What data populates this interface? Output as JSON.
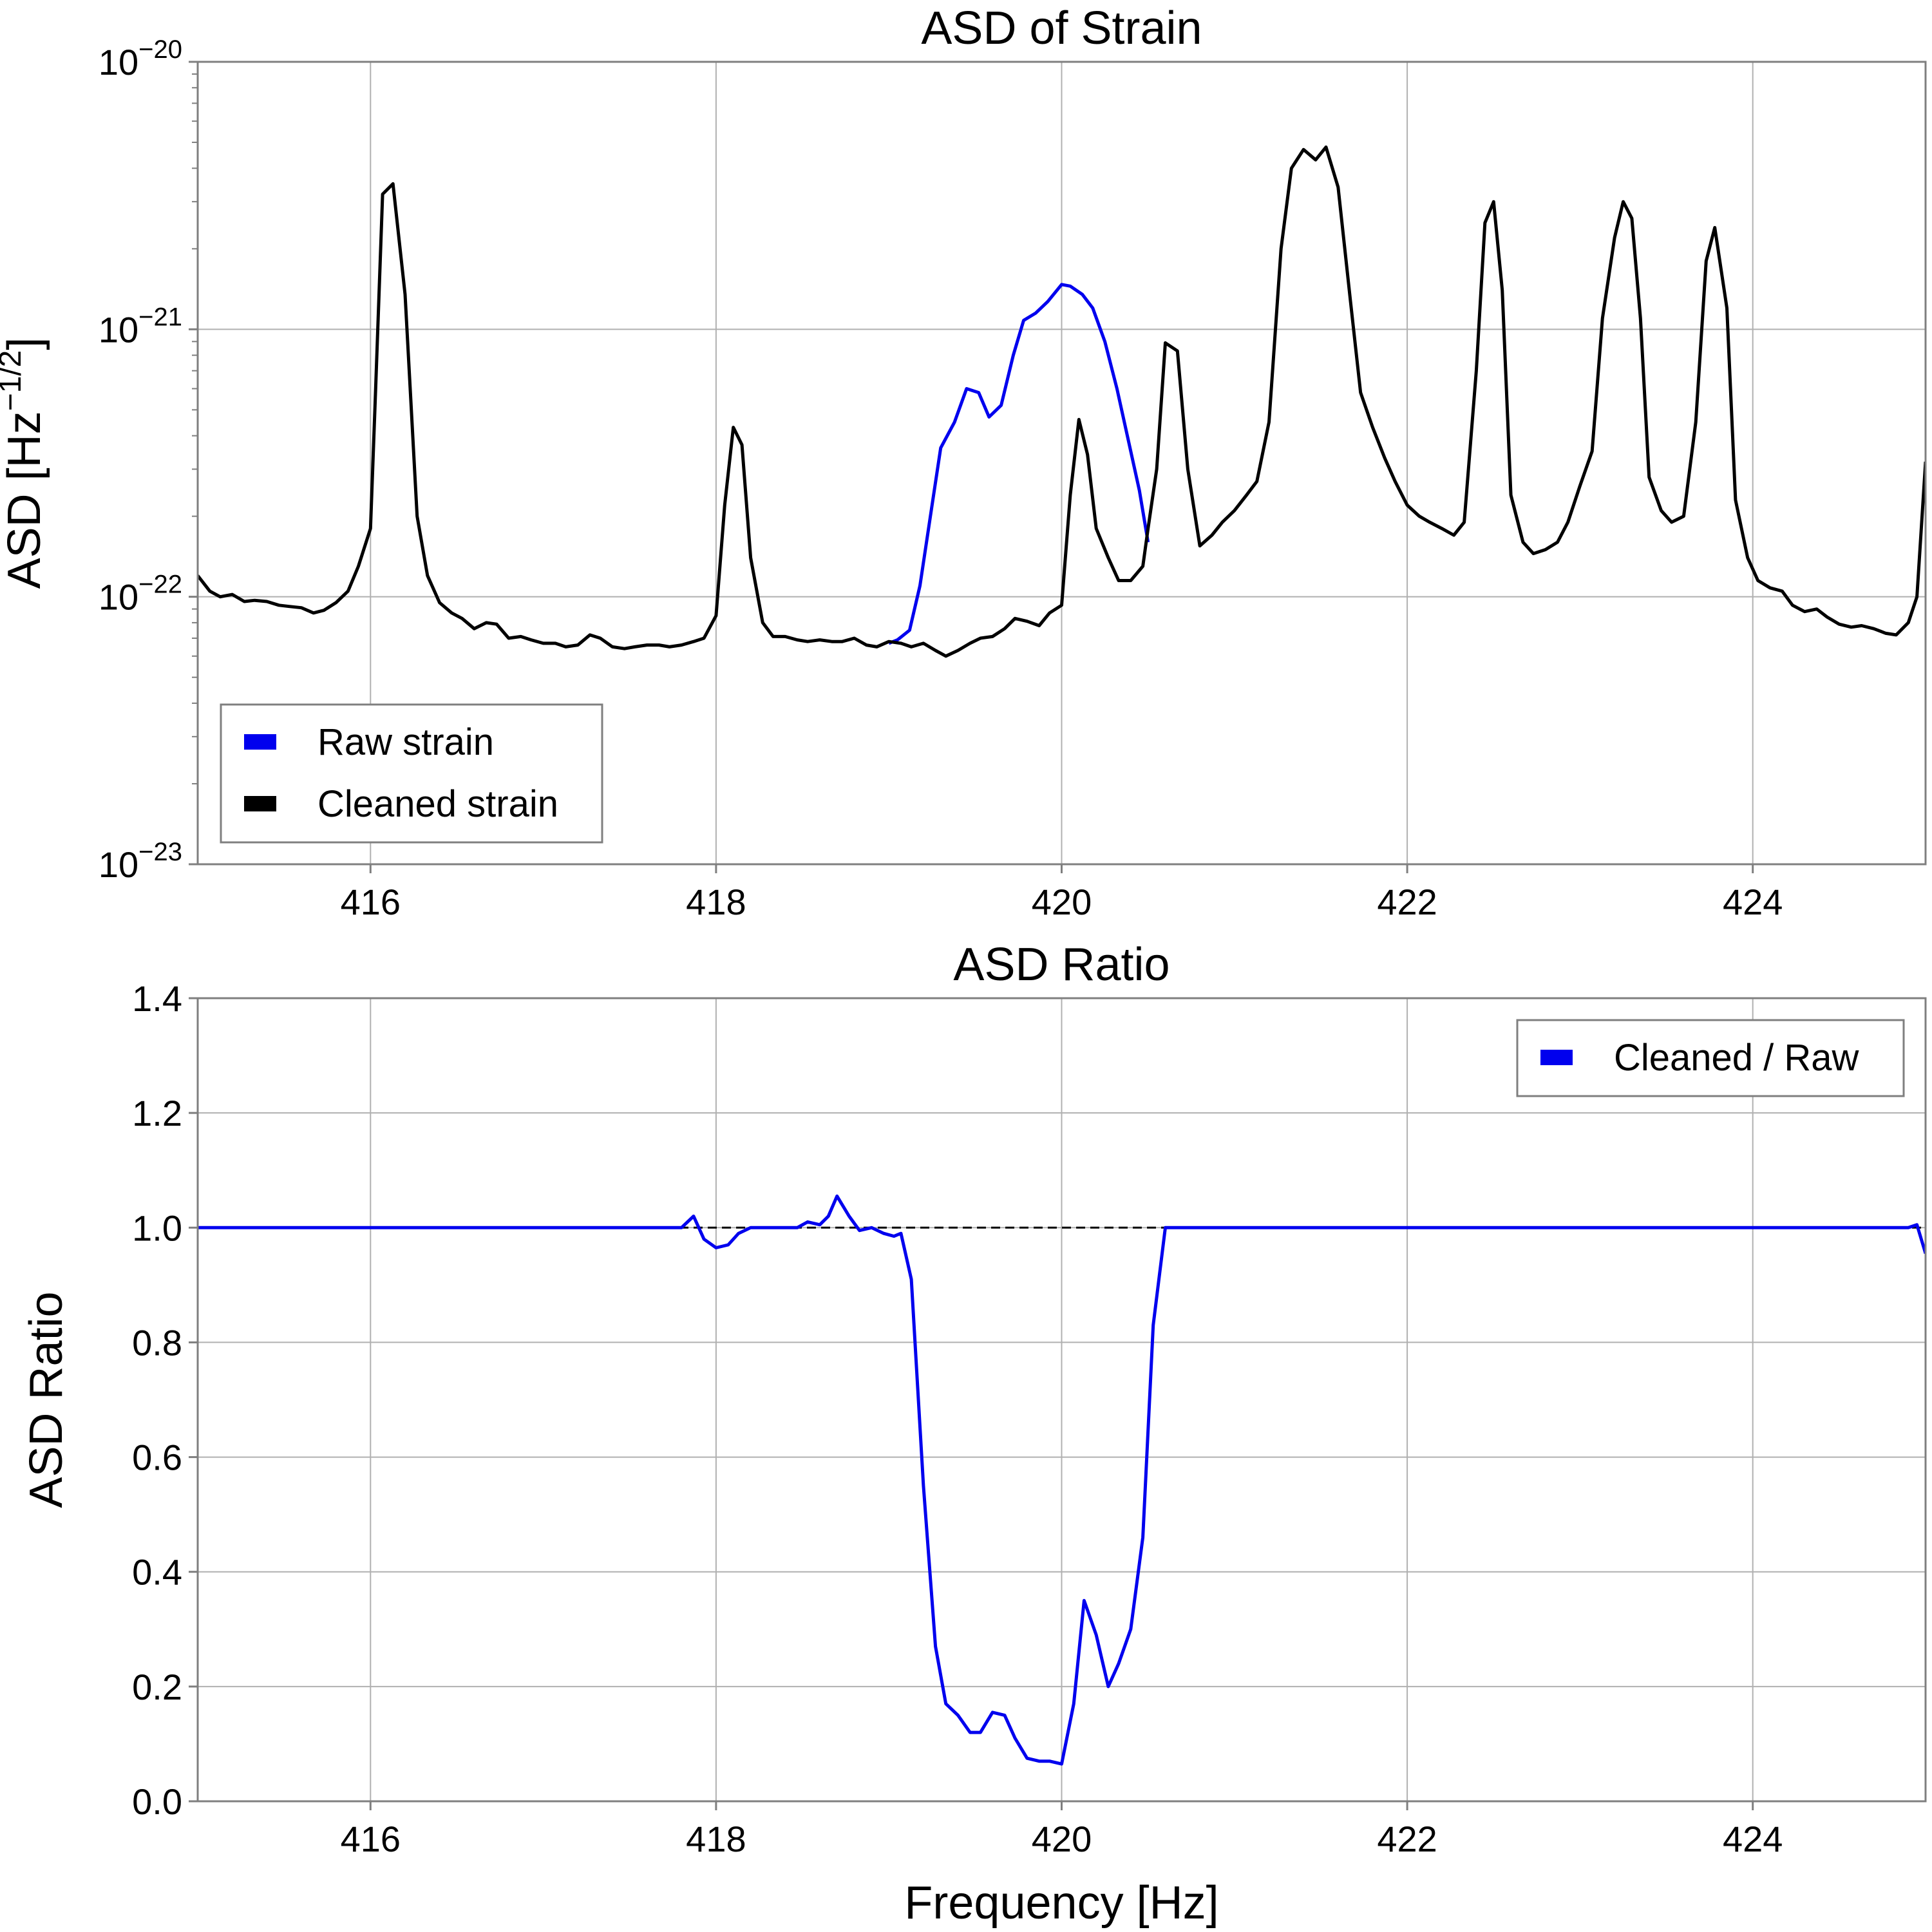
{
  "chart_data": [
    {
      "type": "line",
      "title": "ASD of Strain",
      "xlabel": "",
      "ylabel": "ASD [Hz",
      "ylabel_sup": "−1/2",
      "ylabel_close": "]",
      "yscale": "log",
      "xlim": [
        415,
        425
      ],
      "ylim": [
        1e-23,
        1e-20
      ],
      "xticks": [
        "416",
        "418",
        "420",
        "422",
        "424"
      ],
      "xtick_values": [
        416,
        418,
        420,
        422,
        424
      ],
      "yticks": [
        {
          "base": "10",
          "exp": "−20",
          "value": 1e-20
        },
        {
          "base": "10",
          "exp": "−21",
          "value": 1e-21
        },
        {
          "base": "10",
          "exp": "−22",
          "value": 1e-22
        },
        {
          "base": "10",
          "exp": "−23",
          "value": 1e-23
        }
      ],
      "grid": true,
      "legend_position": "lower-left",
      "series": [
        {
          "name": "Raw strain",
          "color": "#0000ee",
          "points": [
            [
              419.0,
              6.7e-23
            ],
            [
              419.05,
              6.9e-23
            ],
            [
              419.12,
              7.5e-23
            ],
            [
              419.18,
              1.1e-22
            ],
            [
              419.25,
              2.2e-22
            ],
            [
              419.3,
              3.6e-22
            ],
            [
              419.38,
              4.5e-22
            ],
            [
              419.45,
              6e-22
            ],
            [
              419.52,
              5.8e-22
            ],
            [
              419.58,
              4.7e-22
            ],
            [
              419.65,
              5.2e-22
            ],
            [
              419.72,
              8e-22
            ],
            [
              419.78,
              1.08e-21
            ],
            [
              419.85,
              1.15e-21
            ],
            [
              419.92,
              1.27e-21
            ],
            [
              420.0,
              1.47e-21
            ],
            [
              420.05,
              1.45e-21
            ],
            [
              420.12,
              1.35e-21
            ],
            [
              420.18,
              1.2e-21
            ],
            [
              420.25,
              9e-22
            ],
            [
              420.32,
              6e-22
            ],
            [
              420.38,
              4e-22
            ],
            [
              420.45,
              2.5e-22
            ],
            [
              420.5,
              1.6e-22
            ]
          ]
        },
        {
          "name": "Cleaned strain",
          "color": "#000000",
          "points": [
            [
              415.0,
              1.2e-22
            ],
            [
              415.07,
              1.05e-22
            ],
            [
              415.13,
              1e-22
            ],
            [
              415.2,
              1.02e-22
            ],
            [
              415.27,
              9.6e-23
            ],
            [
              415.33,
              9.7e-23
            ],
            [
              415.4,
              9.6e-23
            ],
            [
              415.47,
              9.3e-23
            ],
            [
              415.53,
              9.2e-23
            ],
            [
              415.6,
              9.1e-23
            ],
            [
              415.67,
              8.7e-23
            ],
            [
              415.73,
              8.9e-23
            ],
            [
              415.8,
              9.5e-23
            ],
            [
              415.87,
              1.05e-22
            ],
            [
              415.93,
              1.3e-22
            ],
            [
              416.0,
              1.8e-22
            ],
            [
              416.03,
              6e-22
            ],
            [
              416.07,
              3.2e-21
            ],
            [
              416.13,
              3.5e-21
            ],
            [
              416.2,
              1.35e-21
            ],
            [
              416.27,
              2e-22
            ],
            [
              416.33,
              1.2e-22
            ],
            [
              416.4,
              9.5e-23
            ],
            [
              416.47,
              8.7e-23
            ],
            [
              416.53,
              8.3e-23
            ],
            [
              416.6,
              7.6e-23
            ],
            [
              416.67,
              8e-23
            ],
            [
              416.73,
              7.9e-23
            ],
            [
              416.8,
              7e-23
            ],
            [
              416.87,
              7.1e-23
            ],
            [
              416.93,
              6.9e-23
            ],
            [
              417.0,
              6.7e-23
            ],
            [
              417.07,
              6.7e-23
            ],
            [
              417.13,
              6.5e-23
            ],
            [
              417.2,
              6.6e-23
            ],
            [
              417.27,
              7.2e-23
            ],
            [
              417.33,
              7e-23
            ],
            [
              417.4,
              6.5e-23
            ],
            [
              417.47,
              6.4e-23
            ],
            [
              417.53,
              6.5e-23
            ],
            [
              417.6,
              6.6e-23
            ],
            [
              417.67,
              6.6e-23
            ],
            [
              417.73,
              6.5e-23
            ],
            [
              417.8,
              6.6e-23
            ],
            [
              417.87,
              6.8e-23
            ],
            [
              417.93,
              7e-23
            ],
            [
              418.0,
              8.5e-23
            ],
            [
              418.05,
              2.2e-22
            ],
            [
              418.1,
              4.3e-22
            ],
            [
              418.15,
              3.7e-22
            ],
            [
              418.2,
              1.4e-22
            ],
            [
              418.27,
              8e-23
            ],
            [
              418.33,
              7.1e-23
            ],
            [
              418.4,
              7.1e-23
            ],
            [
              418.47,
              6.9e-23
            ],
            [
              418.53,
              6.8e-23
            ],
            [
              418.6,
              6.9e-23
            ],
            [
              418.67,
              6.8e-23
            ],
            [
              418.73,
              6.8e-23
            ],
            [
              418.8,
              7e-23
            ],
            [
              418.87,
              6.6e-23
            ],
            [
              418.93,
              6.5e-23
            ],
            [
              419.0,
              6.8e-23
            ],
            [
              419.07,
              6.7e-23
            ],
            [
              419.13,
              6.5e-23
            ],
            [
              419.2,
              6.7e-23
            ],
            [
              419.27,
              6.3e-23
            ],
            [
              419.33,
              6e-23
            ],
            [
              419.4,
              6.3e-23
            ],
            [
              419.47,
              6.7e-23
            ],
            [
              419.53,
              7e-23
            ],
            [
              419.6,
              7.1e-23
            ],
            [
              419.67,
              7.6e-23
            ],
            [
              419.73,
              8.3e-23
            ],
            [
              419.8,
              8.1e-23
            ],
            [
              419.87,
              7.8e-23
            ],
            [
              419.93,
              8.7e-23
            ],
            [
              420.0,
              9.3e-23
            ],
            [
              420.05,
              2.4e-22
            ],
            [
              420.1,
              4.6e-22
            ],
            [
              420.15,
              3.4e-22
            ],
            [
              420.2,
              1.8e-22
            ],
            [
              420.27,
              1.4e-22
            ],
            [
              420.33,
              1.15e-22
            ],
            [
              420.4,
              1.15e-22
            ],
            [
              420.47,
              1.3e-22
            ],
            [
              420.5,
              1.8e-22
            ],
            [
              420.55,
              3e-22
            ],
            [
              420.6,
              8.9e-22
            ],
            [
              420.67,
              8.3e-22
            ],
            [
              420.73,
              3e-22
            ],
            [
              420.8,
              1.55e-22
            ],
            [
              420.87,
              1.7e-22
            ],
            [
              420.93,
              1.9e-22
            ],
            [
              421.0,
              2.1e-22
            ],
            [
              421.07,
              2.4e-22
            ],
            [
              421.13,
              2.7e-22
            ],
            [
              421.2,
              4.5e-22
            ],
            [
              421.27,
              2e-21
            ],
            [
              421.33,
              4e-21
            ],
            [
              421.4,
              4.7e-21
            ],
            [
              421.47,
              4.3e-21
            ],
            [
              421.53,
              4.8e-21
            ],
            [
              421.6,
              3.4e-21
            ],
            [
              421.67,
              1.3e-21
            ],
            [
              421.73,
              5.8e-22
            ],
            [
              421.8,
              4.3e-22
            ],
            [
              421.87,
              3.3e-22
            ],
            [
              421.93,
              2.7e-22
            ],
            [
              422.0,
              2.2e-22
            ],
            [
              422.07,
              2e-22
            ],
            [
              422.13,
              1.9e-22
            ],
            [
              422.2,
              1.8e-22
            ],
            [
              422.27,
              1.7e-22
            ],
            [
              422.33,
              1.9e-22
            ],
            [
              422.4,
              7e-22
            ],
            [
              422.45,
              2.5e-21
            ],
            [
              422.5,
              3e-21
            ],
            [
              422.55,
              1.4e-21
            ],
            [
              422.6,
              2.4e-22
            ],
            [
              422.67,
              1.6e-22
            ],
            [
              422.73,
              1.45e-22
            ],
            [
              422.8,
              1.5e-22
            ],
            [
              422.87,
              1.6e-22
            ],
            [
              422.93,
              1.9e-22
            ],
            [
              423.0,
              2.6e-22
            ],
            [
              423.07,
              3.5e-22
            ],
            [
              423.13,
              1.1e-21
            ],
            [
              423.2,
              2.2e-21
            ],
            [
              423.25,
              3e-21
            ],
            [
              423.3,
              2.6e-21
            ],
            [
              423.35,
              1.1e-21
            ],
            [
              423.4,
              2.8e-22
            ],
            [
              423.47,
              2.1e-22
            ],
            [
              423.53,
              1.9e-22
            ],
            [
              423.6,
              2e-22
            ],
            [
              423.67,
              4.5e-22
            ],
            [
              423.73,
              1.8e-21
            ],
            [
              423.78,
              2.4e-21
            ],
            [
              423.85,
              1.2e-21
            ],
            [
              423.9,
              2.3e-22
            ],
            [
              423.97,
              1.4e-22
            ],
            [
              424.03,
              1.15e-22
            ],
            [
              424.1,
              1.08e-22
            ],
            [
              424.17,
              1.05e-22
            ],
            [
              424.23,
              9.3e-23
            ],
            [
              424.3,
              8.8e-23
            ],
            [
              424.37,
              9e-23
            ],
            [
              424.43,
              8.4e-23
            ],
            [
              424.5,
              7.9e-23
            ],
            [
              424.57,
              7.7e-23
            ],
            [
              424.63,
              7.8e-23
            ],
            [
              424.7,
              7.6e-23
            ],
            [
              424.77,
              7.3e-23
            ],
            [
              424.83,
              7.2e-23
            ],
            [
              424.9,
              8e-23
            ],
            [
              424.95,
              1e-22
            ],
            [
              425.0,
              3.2e-22
            ]
          ]
        }
      ]
    },
    {
      "type": "line",
      "title": "ASD Ratio",
      "xlabel": "Frequency [Hz]",
      "ylabel": "ASD Ratio",
      "yscale": "linear",
      "xlim": [
        415,
        425
      ],
      "ylim": [
        0.0,
        1.4
      ],
      "xticks": [
        "416",
        "418",
        "420",
        "422",
        "424"
      ],
      "xtick_values": [
        416,
        418,
        420,
        422,
        424
      ],
      "yticks": [
        {
          "label": "0.0",
          "value": 0.0
        },
        {
          "label": "0.2",
          "value": 0.2
        },
        {
          "label": "0.4",
          "value": 0.4
        },
        {
          "label": "0.6",
          "value": 0.6
        },
        {
          "label": "0.8",
          "value": 0.8
        },
        {
          "label": "1.0",
          "value": 1.0
        },
        {
          "label": "1.2",
          "value": 1.2
        },
        {
          "label": "1.4",
          "value": 1.4
        }
      ],
      "grid": true,
      "legend_position": "top-right",
      "reference_line": {
        "y": 1.0,
        "style": "dashed",
        "color": "#000000"
      },
      "series": [
        {
          "name": "Cleaned / Raw",
          "color": "#0000ee",
          "points": [
            [
              415.0,
              1.0
            ],
            [
              417.8,
              1.0
            ],
            [
              417.87,
              1.02
            ],
            [
              417.93,
              0.98
            ],
            [
              418.0,
              0.965
            ],
            [
              418.07,
              0.97
            ],
            [
              418.13,
              0.99
            ],
            [
              418.2,
              1.0
            ],
            [
              418.27,
              1.0
            ],
            [
              418.33,
              1.0
            ],
            [
              418.4,
              1.0
            ],
            [
              418.47,
              1.0
            ],
            [
              418.53,
              1.01
            ],
            [
              418.6,
              1.005
            ],
            [
              418.65,
              1.02
            ],
            [
              418.7,
              1.055
            ],
            [
              418.77,
              1.02
            ],
            [
              418.83,
              0.995
            ],
            [
              418.9,
              1.0
            ],
            [
              418.97,
              0.99
            ],
            [
              419.03,
              0.985
            ],
            [
              419.07,
              0.99
            ],
            [
              419.13,
              0.91
            ],
            [
              419.2,
              0.55
            ],
            [
              419.27,
              0.27
            ],
            [
              419.33,
              0.17
            ],
            [
              419.4,
              0.15
            ],
            [
              419.47,
              0.12
            ],
            [
              419.53,
              0.12
            ],
            [
              419.6,
              0.155
            ],
            [
              419.67,
              0.15
            ],
            [
              419.73,
              0.11
            ],
            [
              419.8,
              0.075
            ],
            [
              419.87,
              0.07
            ],
            [
              419.93,
              0.07
            ],
            [
              420.0,
              0.065
            ],
            [
              420.07,
              0.17
            ],
            [
              420.13,
              0.35
            ],
            [
              420.2,
              0.29
            ],
            [
              420.27,
              0.2
            ],
            [
              420.33,
              0.24
            ],
            [
              420.4,
              0.3
            ],
            [
              420.47,
              0.46
            ],
            [
              420.53,
              0.83
            ],
            [
              420.6,
              1.0
            ],
            [
              424.9,
              1.0
            ],
            [
              424.95,
              1.005
            ],
            [
              425.0,
              0.955
            ]
          ]
        }
      ]
    }
  ]
}
